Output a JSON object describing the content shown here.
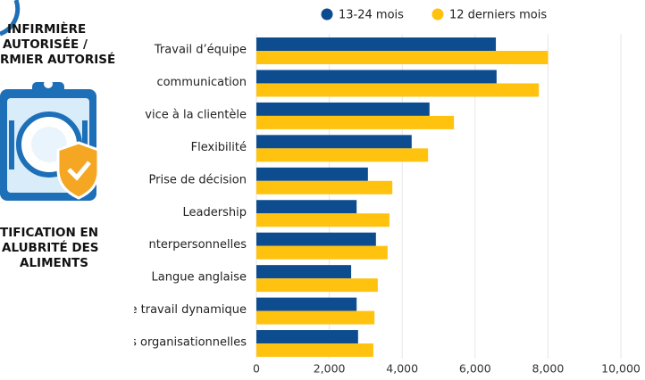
{
  "panel": {
    "top_lines": [
      "INFIRMIÈRE",
      "AUTORISÉE /",
      "RMIER AUTORISÉ"
    ],
    "bottom_lines": [
      "TIFICATION EN",
      "ALUBRITÉ DES",
      "ALIMENTS"
    ]
  },
  "chart_data": {
    "type": "hbar",
    "categories": [
      "Travail d’équipe",
      "communication",
      "vice à la clientèle",
      "Flexibilité",
      "Prise de décision",
      "Leadership",
      "nterpersonnelles",
      "Langue anglaise",
      "Environnement de travail dynamique",
      "Compétences organisationnelles"
    ],
    "series": [
      {
        "name": "13-24 mois",
        "color": "#0d4c8f",
        "values": [
          6570,
          6590,
          4750,
          4260,
          3060,
          2750,
          3280,
          2600,
          2750,
          2790
        ]
      },
      {
        "name": "12 derniers mois",
        "color": "#ffc20e",
        "values": [
          8000,
          7750,
          5420,
          4710,
          3730,
          3650,
          3600,
          3330,
          3240,
          3210
        ]
      }
    ],
    "xlim": [
      0,
      10000
    ],
    "xticks": [
      0,
      {
        "value": 2000,
        "label": "2,000"
      },
      {
        "value": 4000,
        "label": "4,000"
      },
      {
        "value": 6000,
        "label": "6,000"
      },
      {
        "value": 8000,
        "label": "8,000"
      },
      {
        "value": 10000,
        "label": "10,000"
      }
    ],
    "grid": true,
    "legend": "top"
  }
}
